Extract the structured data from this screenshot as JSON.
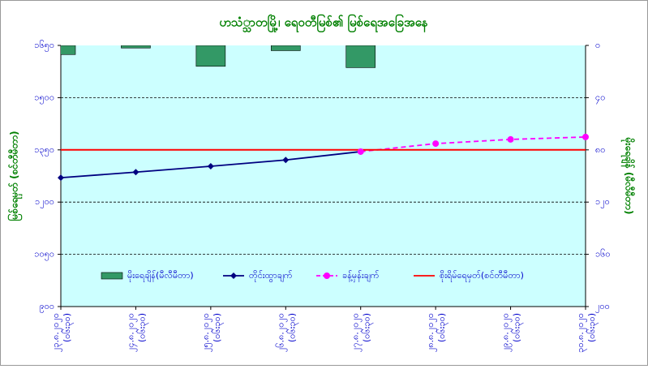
{
  "chart_data": {
    "type": "line",
    "title": "ဟသံ္သာတမြို့၊ ရေ၀တီမြစ်၏ မြစ်ရေအခြေအနေ",
    "y_label": "မြစ်ရေမှတ် (စင်တီမီတာ)",
    "y2_label": "မိုးရေချိန် (မီလီမီတာ)",
    "categories": [
      "၂၃.၈.၂၀၂၀",
      "၂၄.၈.၂၀၂၀",
      "၂၅.၈.၂၀၂၀",
      "၂၆.၈.၂၀၂၀",
      "၂၇.၈.၂၀၂၀",
      "၂၈.၈.၂၀၂၀",
      "၂၉.၈.၂၀၂၀",
      "၃၀.၈.၂၀၂၀"
    ],
    "category_notes": [
      "(၀၆း၃၀)",
      "(၀၆း၃၀)",
      "(၀၆း၃၀)",
      "(၀၆း၃၀)",
      "(၀၆း၃၀)",
      "(၀၆း၃၀)",
      "(၀၆း၃၀)",
      "(၀၆း၃၀)"
    ],
    "series": [
      {
        "name": "မိုးရေချိန်(မီလီမီတာ)",
        "kind": "bar",
        "axis": "y2",
        "color": "#339966",
        "values": [
          7,
          2,
          16,
          4,
          17,
          0,
          0,
          0
        ]
      },
      {
        "name": "တိုင်းထွာချက်",
        "kind": "line",
        "color": "#000080",
        "values": [
          1270,
          1286,
          1303,
          1321,
          1345,
          null,
          null,
          null
        ]
      },
      {
        "name": "ခန့်မှန်းချက်",
        "kind": "dashed",
        "color": "#ff00ff",
        "values": [
          null,
          null,
          null,
          null,
          1345,
          1368,
          1380,
          1387
        ]
      },
      {
        "name": "စိုးရိမ်ရေမှတ်(စင်တီမီတာ)",
        "kind": "level",
        "color": "#ff0000",
        "values": [
          1350,
          1350,
          1350,
          1350,
          1350,
          1350,
          1350,
          1350
        ]
      }
    ],
    "ylim": [
      900,
      1650
    ],
    "yticks": [
      {
        "value": 900,
        "label": "၉၀၀"
      },
      {
        "value": 1050,
        "label": "၁၀၅၀"
      },
      {
        "value": 1200,
        "label": "၁၂၀၀"
      },
      {
        "value": 1350,
        "label": "၁၃၅၀"
      },
      {
        "value": 1500,
        "label": "၁၅၀၀"
      },
      {
        "value": 1650,
        "label": "၁၆၅၀"
      }
    ],
    "y2lim": [
      0,
      200
    ],
    "y2ticks": [
      {
        "value": 0,
        "label": "၀"
      },
      {
        "value": 40,
        "label": "၄၀"
      },
      {
        "value": 80,
        "label": "၈၀"
      },
      {
        "value": 120,
        "label": "၁၂၀"
      },
      {
        "value": 160,
        "label": "၁၆၀"
      },
      {
        "value": 200,
        "label": "၂၀၀"
      }
    ],
    "y2_inverted": true,
    "grid": true
  }
}
